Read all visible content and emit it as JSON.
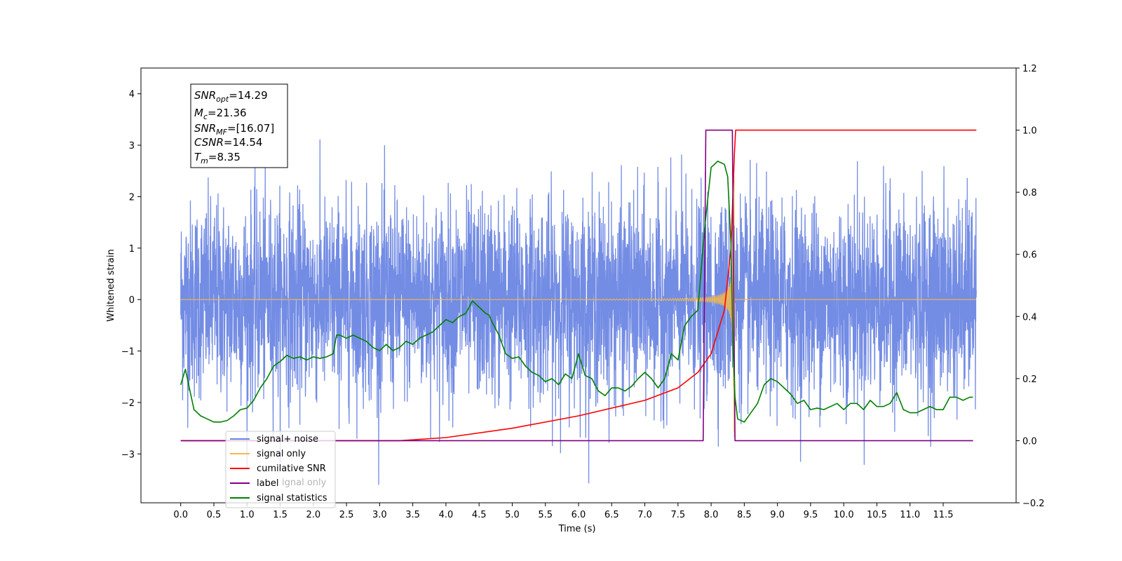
{
  "chart_data": {
    "type": "line",
    "xlabel": "Time (s)",
    "ylabel": "Whitened strain",
    "xlim": [
      -0.6,
      12.6
    ],
    "ylim": [
      -3.95,
      4.5
    ],
    "y2lim": [
      -0.2,
      1.2
    ],
    "x_ticks": [
      "0.0",
      "0.5",
      "1.0",
      "1.5",
      "2.0",
      "2.5",
      "3.0",
      "3.5",
      "4.0",
      "4.5",
      "5.0",
      "5.5",
      "6.0",
      "6.5",
      "7.0",
      "7.5",
      "8.0",
      "8.5",
      "9.0",
      "9.5",
      "10.0",
      "10.5",
      "11.0",
      "11.5"
    ],
    "y_ticks": [
      "−3",
      "−2",
      "−1",
      "0",
      "1",
      "2",
      "3",
      "4"
    ],
    "y2_ticks": [
      "−0.2",
      "0.0",
      "0.2",
      "0.4",
      "0.6",
      "0.8",
      "1.0",
      "1.2"
    ],
    "legend_position": "lower-left",
    "annotation": {
      "snr_opt": {
        "main": "SNR",
        "sub": "opt",
        "value": "=14.29"
      },
      "mc": {
        "main": "M",
        "sub": "c",
        "value": "=21.36"
      },
      "snr_mf": {
        "main": "SNR",
        "sub": "MF",
        "value": "=[16.07]"
      },
      "csnr": {
        "main": "CSNR",
        "sub": "",
        "value": "=14.54"
      },
      "tm": {
        "main": "T",
        "sub": "m",
        "value": "=8.35"
      }
    },
    "series": [
      {
        "name": "signal+ noise",
        "axis": "left",
        "color": "#6b86e3",
        "time_range": [
          0.0,
          12.0
        ],
        "noise_sigma": 1.0,
        "peak_max": 3.45,
        "peak_min": -3.6
      },
      {
        "name": "signal only",
        "axis": "left",
        "color": "#f5b84a",
        "chirp_start": 3.5,
        "merger_time": 8.35,
        "max_amplitude": 2.7
      },
      {
        "name": "cumilative SNR",
        "axis": "right",
        "color": "#ff0000",
        "x": [
          0.0,
          3.3,
          4.0,
          5.0,
          6.0,
          7.0,
          7.5,
          7.8,
          8.0,
          8.2,
          8.3,
          8.35,
          8.37,
          12.0
        ],
        "y": [
          0.0,
          0.0,
          0.01,
          0.04,
          0.08,
          0.13,
          0.17,
          0.22,
          0.28,
          0.42,
          0.62,
          0.92,
          1.0,
          1.0
        ]
      },
      {
        "name": "label",
        "axis": "right",
        "color": "#800080",
        "x": [
          0.0,
          7.88,
          7.92,
          8.32,
          8.36,
          11.95
        ],
        "y": [
          0.0,
          0.0,
          1.0,
          1.0,
          0.0,
          0.0
        ]
      },
      {
        "name": "signal statistics",
        "axis": "right",
        "color": "#008000",
        "x": [
          0.0,
          0.07,
          0.12,
          0.2,
          0.3,
          0.4,
          0.5,
          0.6,
          0.7,
          0.8,
          0.9,
          1.0,
          1.1,
          1.2,
          1.3,
          1.4,
          1.5,
          1.6,
          1.7,
          1.8,
          1.9,
          2.0,
          2.1,
          2.2,
          2.3,
          2.35,
          2.4,
          2.5,
          2.6,
          2.7,
          2.8,
          2.9,
          3.0,
          3.1,
          3.2,
          3.3,
          3.4,
          3.5,
          3.6,
          3.7,
          3.8,
          3.9,
          4.0,
          4.1,
          4.2,
          4.3,
          4.4,
          4.5,
          4.6,
          4.65,
          4.7,
          4.8,
          4.9,
          5.0,
          5.1,
          5.2,
          5.3,
          5.4,
          5.5,
          5.6,
          5.7,
          5.8,
          5.9,
          6.0,
          6.1,
          6.2,
          6.3,
          6.4,
          6.5,
          6.6,
          6.7,
          6.8,
          6.9,
          7.0,
          7.1,
          7.2,
          7.3,
          7.4,
          7.5,
          7.6,
          7.7,
          7.8,
          7.9,
          8.0,
          8.1,
          8.2,
          8.25,
          8.3,
          8.33,
          8.36,
          8.4,
          8.5,
          8.6,
          8.7,
          8.8,
          8.9,
          9.0,
          9.1,
          9.2,
          9.3,
          9.4,
          9.5,
          9.6,
          9.7,
          9.8,
          9.9,
          10.0,
          10.1,
          10.2,
          10.3,
          10.4,
          10.5,
          10.6,
          10.7,
          10.8,
          10.9,
          11.0,
          11.1,
          11.2,
          11.3,
          11.4,
          11.5,
          11.6,
          11.7,
          11.8,
          11.9,
          11.95
        ],
        "y": [
          0.18,
          0.23,
          0.18,
          0.1,
          0.08,
          0.07,
          0.06,
          0.06,
          0.065,
          0.08,
          0.1,
          0.105,
          0.13,
          0.17,
          0.2,
          0.24,
          0.255,
          0.275,
          0.265,
          0.27,
          0.26,
          0.27,
          0.265,
          0.27,
          0.28,
          0.34,
          0.34,
          0.33,
          0.34,
          0.33,
          0.32,
          0.3,
          0.29,
          0.31,
          0.29,
          0.3,
          0.32,
          0.31,
          0.33,
          0.34,
          0.35,
          0.37,
          0.39,
          0.38,
          0.4,
          0.41,
          0.45,
          0.43,
          0.41,
          0.405,
          0.38,
          0.34,
          0.28,
          0.265,
          0.27,
          0.24,
          0.22,
          0.21,
          0.19,
          0.2,
          0.18,
          0.215,
          0.2,
          0.28,
          0.21,
          0.2,
          0.16,
          0.145,
          0.17,
          0.17,
          0.16,
          0.175,
          0.2,
          0.22,
          0.2,
          0.17,
          0.2,
          0.28,
          0.26,
          0.37,
          0.4,
          0.42,
          0.68,
          0.88,
          0.9,
          0.89,
          0.85,
          0.63,
          0.3,
          0.14,
          0.07,
          0.06,
          0.09,
          0.12,
          0.18,
          0.2,
          0.19,
          0.17,
          0.15,
          0.12,
          0.13,
          0.1,
          0.105,
          0.1,
          0.11,
          0.12,
          0.1,
          0.12,
          0.12,
          0.1,
          0.13,
          0.11,
          0.11,
          0.12,
          0.155,
          0.1,
          0.09,
          0.09,
          0.1,
          0.11,
          0.1,
          0.1,
          0.14,
          0.14,
          0.13,
          0.14,
          0.14
        ]
      }
    ]
  }
}
